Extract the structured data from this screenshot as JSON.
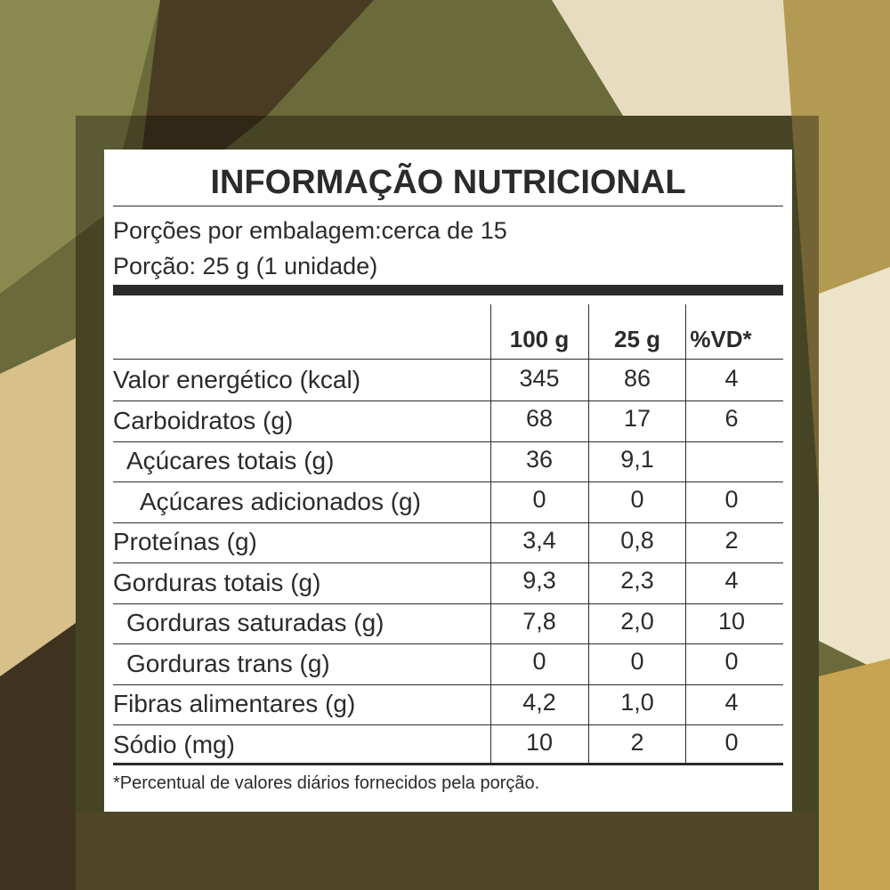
{
  "header": {
    "title": "INFORMAÇÃO NUTRICIONAL",
    "servings": "Porções por embalagem:cerca de 15",
    "portion": "Porção: 25 g (1 unidade)"
  },
  "table": {
    "columns": [
      "100 g",
      "25 g",
      "%VD*"
    ],
    "rows": [
      {
        "label": "Valor energético (kcal)",
        "indent": 0,
        "cells": [
          "345",
          "86",
          "4"
        ]
      },
      {
        "label": "Carboidratos (g)",
        "indent": 0,
        "cells": [
          "68",
          "17",
          "6"
        ]
      },
      {
        "label": "Açúcares totais (g)",
        "indent": 1,
        "cells": [
          "36",
          "9,1"
        ]
      },
      {
        "label": "Açúcares adicionados (g)",
        "indent": 2,
        "cells": [
          "0",
          "0",
          "0"
        ]
      },
      {
        "label": "Proteínas (g)",
        "indent": 0,
        "cells": [
          "3,4",
          "0,8",
          "2"
        ]
      },
      {
        "label": "Gorduras totais (g)",
        "indent": 0,
        "cells": [
          "9,3",
          "2,3",
          "4"
        ]
      },
      {
        "label": "Gorduras saturadas (g)",
        "indent": 1,
        "cells": [
          "7,8",
          "2,0",
          "10"
        ]
      },
      {
        "label": "Gorduras trans (g)",
        "indent": 1,
        "cells": [
          "0",
          "0",
          "0"
        ]
      },
      {
        "label": "Fibras alimentares (g)",
        "indent": 0,
        "cells": [
          "4,2",
          "1,0",
          "4"
        ]
      },
      {
        "label": "Sódio (mg)",
        "indent": 0,
        "cells": [
          "10",
          "2",
          "0"
        ]
      }
    ]
  },
  "footnote": "*Percentual de valores diários fornecidos pela porção."
}
